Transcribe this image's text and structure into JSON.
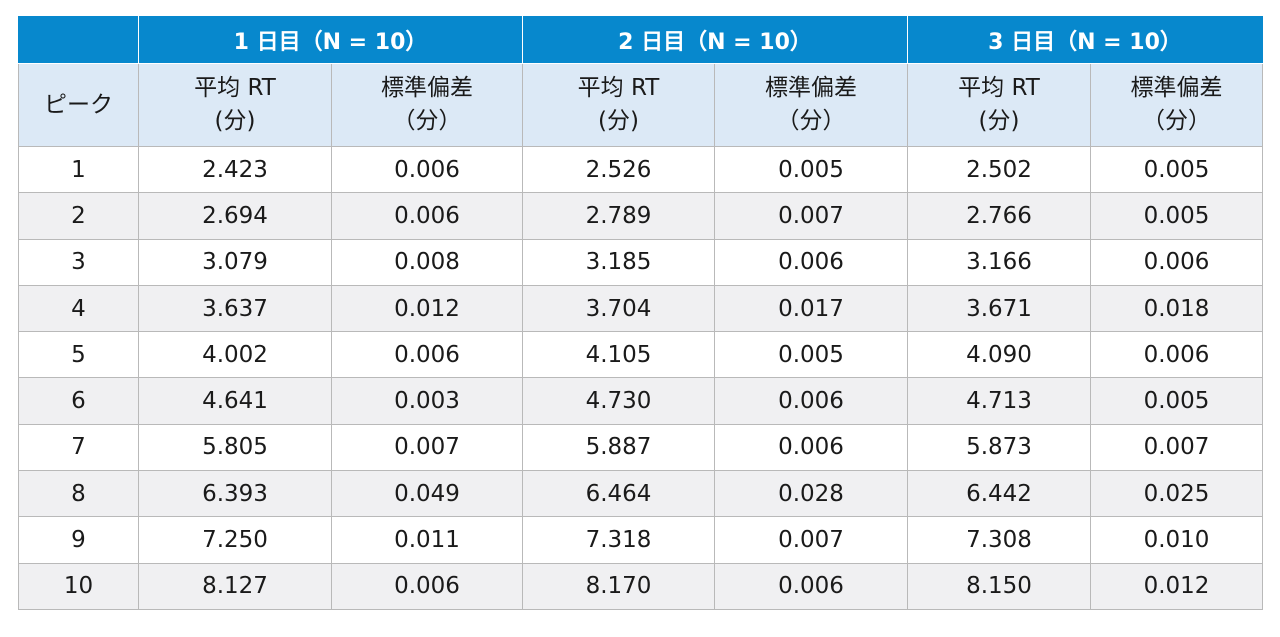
{
  "table": {
    "peak_header": "ピーク",
    "days": [
      {
        "label": "1 日目（N = 10）"
      },
      {
        "label": "2 日目（N = 10）"
      },
      {
        "label": "3 日目（N = 10）"
      }
    ],
    "sub_headers": {
      "mean_line1": "平均 RT",
      "mean_line2": "(分)",
      "sd_line1": "標準偏差",
      "sd_line2": "（分）"
    },
    "rows": [
      {
        "peak": "1",
        "d1_mean": "2.423",
        "d1_sd": "0.006",
        "d2_mean": "2.526",
        "d2_sd": "0.005",
        "d3_mean": "2.502",
        "d3_sd": "0.005"
      },
      {
        "peak": "2",
        "d1_mean": "2.694",
        "d1_sd": "0.006",
        "d2_mean": "2.789",
        "d2_sd": "0.007",
        "d3_mean": "2.766",
        "d3_sd": "0.005"
      },
      {
        "peak": "3",
        "d1_mean": "3.079",
        "d1_sd": "0.008",
        "d2_mean": "3.185",
        "d2_sd": "0.006",
        "d3_mean": "3.166",
        "d3_sd": "0.006"
      },
      {
        "peak": "4",
        "d1_mean": "3.637",
        "d1_sd": "0.012",
        "d2_mean": "3.704",
        "d2_sd": "0.017",
        "d3_mean": "3.671",
        "d3_sd": "0.018"
      },
      {
        "peak": "5",
        "d1_mean": "4.002",
        "d1_sd": "0.006",
        "d2_mean": "4.105",
        "d2_sd": "0.005",
        "d3_mean": "4.090",
        "d3_sd": "0.006"
      },
      {
        "peak": "6",
        "d1_mean": "4.641",
        "d1_sd": "0.003",
        "d2_mean": "4.730",
        "d2_sd": "0.006",
        "d3_mean": "4.713",
        "d3_sd": "0.005"
      },
      {
        "peak": "7",
        "d1_mean": "5.805",
        "d1_sd": "0.007",
        "d2_mean": "5.887",
        "d2_sd": "0.006",
        "d3_mean": "5.873",
        "d3_sd": "0.007"
      },
      {
        "peak": "8",
        "d1_mean": "6.393",
        "d1_sd": "0.049",
        "d2_mean": "6.464",
        "d2_sd": "0.028",
        "d3_mean": "6.442",
        "d3_sd": "0.025"
      },
      {
        "peak": "9",
        "d1_mean": "7.250",
        "d1_sd": "0.011",
        "d2_mean": "7.318",
        "d2_sd": "0.007",
        "d3_mean": "7.308",
        "d3_sd": "0.010"
      },
      {
        "peak": "10",
        "d1_mean": "8.127",
        "d1_sd": "0.006",
        "d2_mean": "8.170",
        "d2_sd": "0.006",
        "d3_mean": "8.150",
        "d3_sd": "0.012"
      }
    ]
  },
  "colors": {
    "header_blue": "#0788cd",
    "subheader_bg": "#dce9f6",
    "alt_row_bg": "#f0f0f2",
    "border": "#b9b9b9"
  }
}
